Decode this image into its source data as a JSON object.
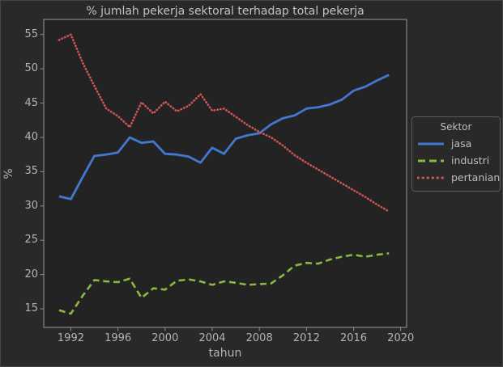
{
  "figure": {
    "background_color": "#292929",
    "plot_background_color": "#232323",
    "spine_color": "#868686",
    "text_color": "#b3b3b3"
  },
  "chart_data": {
    "type": "line",
    "title": "% jumlah pekerja sektoral terhadap total pekerja",
    "xlabel": "tahun",
    "ylabel": "%",
    "grid": false,
    "legend": {
      "title": "Sektor",
      "position": "right-outside"
    },
    "xticks": [
      1992,
      1996,
      2000,
      2004,
      2008,
      2012,
      2016,
      2020
    ],
    "yticks": [
      15,
      20,
      25,
      30,
      35,
      40,
      45,
      50,
      55
    ],
    "xlim": [
      1989.7,
      2020.5
    ],
    "ylim": [
      12.3,
      57.2
    ],
    "x": [
      1991,
      1992,
      1993,
      1994,
      1995,
      1996,
      1997,
      1998,
      1999,
      2000,
      2001,
      2002,
      2003,
      2004,
      2005,
      2006,
      2007,
      2008,
      2009,
      2010,
      2011,
      2012,
      2013,
      2014,
      2015,
      2016,
      2017,
      2018,
      2019
    ],
    "series": [
      {
        "name": "jasa",
        "color": "#4377d0",
        "line_style": "solid",
        "values": [
          31.4,
          31.0,
          34.2,
          37.3,
          37.5,
          37.8,
          40.0,
          39.2,
          39.4,
          37.6,
          37.5,
          37.2,
          36.3,
          38.5,
          37.6,
          39.8,
          40.3,
          40.6,
          41.9,
          42.8,
          43.2,
          44.2,
          44.4,
          44.8,
          45.5,
          46.8,
          47.4,
          48.3,
          49.1
        ]
      },
      {
        "name": "industri",
        "color": "#8ab840",
        "line_style": "dashed",
        "values": [
          14.8,
          14.3,
          16.9,
          19.2,
          19.0,
          18.9,
          19.4,
          16.6,
          18.0,
          17.8,
          19.1,
          19.3,
          19.0,
          18.5,
          19.0,
          18.8,
          18.5,
          18.6,
          18.7,
          19.9,
          21.3,
          21.7,
          21.6,
          22.2,
          22.6,
          22.9,
          22.6,
          22.9,
          23.1
        ]
      },
      {
        "name": "pertanian",
        "color": "#cd5555",
        "line_style": "dotted",
        "values": [
          54.2,
          55.0,
          50.9,
          47.5,
          44.2,
          43.1,
          41.5,
          45.1,
          43.5,
          45.2,
          43.8,
          44.6,
          46.3,
          43.9,
          44.2,
          43.0,
          41.8,
          40.8,
          40.0,
          38.8,
          37.4,
          36.3,
          35.3,
          34.3,
          33.3,
          32.3,
          31.3,
          30.2,
          29.2
        ]
      }
    ]
  }
}
